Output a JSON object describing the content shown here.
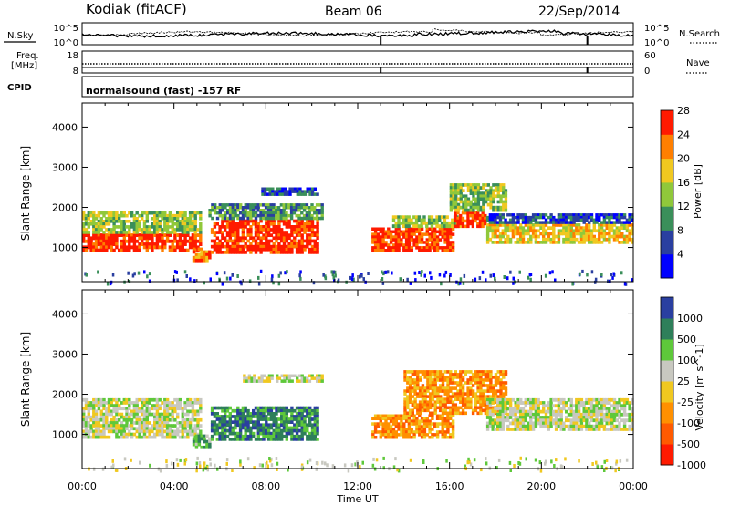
{
  "header": {
    "station": "Kodiak (fitACF)",
    "beam": "Beam 06",
    "date": "22/Sep/2014"
  },
  "panels": {
    "nsky_label": "N.Sky",
    "nsearch_label": "N.Search",
    "noise_ticks_left": [
      "10^5",
      "10^0"
    ],
    "noise_ticks_right": [
      "10^5",
      "10^0"
    ],
    "freq_label_1": "Freq.",
    "freq_label_2": "[MHz]",
    "freq_ticks": [
      "18",
      "8"
    ],
    "nave_label": "Nave",
    "nave_ticks": [
      "60",
      "0"
    ],
    "cpid_label": "CPID",
    "cpid_text": "normalsound (fast) -157 RF"
  },
  "chart_data": [
    {
      "type": "heatmap",
      "title": "",
      "xlabel": "Time UT",
      "ylabel": "Slant Range [km]",
      "xlim": [
        0,
        24
      ],
      "ylim": [
        150,
        4600
      ],
      "x_tick_labels": [
        "00:00",
        "04:00",
        "08:00",
        "12:00",
        "16:00",
        "20:00",
        "00:00"
      ],
      "y_ticks": [
        1000,
        2000,
        3000,
        4000
      ],
      "colorbar": {
        "label": "Power [dB]",
        "ticks": [
          "4",
          "8",
          "12",
          "16",
          "20",
          "24",
          "28"
        ],
        "colors": [
          "#0000ff",
          "#2a3fa0",
          "#3a8f5a",
          "#90c83a",
          "#f0c820",
          "#ff7f00",
          "#ff1a00"
        ]
      },
      "echo_regions": [
        {
          "t0": 0.0,
          "t1": 5.2,
          "r0": 900,
          "r1": 1350,
          "level": 6
        },
        {
          "t0": 0.0,
          "t1": 5.2,
          "r0": 1350,
          "r1": 1900,
          "level": 3
        },
        {
          "t0": 4.8,
          "t1": 5.6,
          "r0": 650,
          "r1": 1000,
          "level": 5
        },
        {
          "t0": 5.6,
          "t1": 10.3,
          "r0": 850,
          "r1": 1700,
          "level": 6
        },
        {
          "t0": 5.5,
          "t1": 10.5,
          "r0": 1700,
          "r1": 2100,
          "level": 2
        },
        {
          "t0": 7.8,
          "t1": 10.3,
          "r0": 2300,
          "r1": 2500,
          "level": 1
        },
        {
          "t0": 12.6,
          "t1": 16.2,
          "r0": 900,
          "r1": 1500,
          "level": 6
        },
        {
          "t0": 13.5,
          "t1": 16.5,
          "r0": 1500,
          "r1": 1800,
          "level": 3
        },
        {
          "t0": 16.2,
          "t1": 17.6,
          "r0": 1500,
          "r1": 1900,
          "level": 6
        },
        {
          "t0": 16.0,
          "t1": 18.5,
          "r0": 1900,
          "r1": 2600,
          "level": 3
        },
        {
          "t0": 17.6,
          "t1": 24.0,
          "r0": 1100,
          "r1": 1600,
          "level": 4
        },
        {
          "t0": 17.6,
          "t1": 24.0,
          "r0": 1600,
          "r1": 1850,
          "level": 1
        }
      ]
    },
    {
      "type": "heatmap",
      "title": "",
      "xlabel": "Time UT",
      "ylabel": "Slant Range [km]",
      "xlim": [
        0,
        24
      ],
      "ylim": [
        150,
        4600
      ],
      "x_tick_labels": [
        "00:00",
        "04:00",
        "08:00",
        "12:00",
        "16:00",
        "20:00",
        "00:00"
      ],
      "y_ticks": [
        1000,
        2000,
        3000,
        4000
      ],
      "colorbar": {
        "label": "Velocity [m s^-1]",
        "ticks": [
          "1000",
          "500",
          "100",
          "25",
          "-25",
          "-100",
          "-500",
          "-1000"
        ],
        "colors": [
          "#2a3fa0",
          "#2e7f5a",
          "#5ec83a",
          "#c8c8c0",
          "#f0c820",
          "#ff9000",
          "#ff5a00",
          "#ff1a00"
        ]
      },
      "echo_regions": [
        {
          "t0": 0.0,
          "t1": 5.2,
          "r0": 900,
          "r1": 1900,
          "level": 3
        },
        {
          "t0": 4.8,
          "t1": 5.6,
          "r0": 650,
          "r1": 1000,
          "level": 2
        },
        {
          "t0": 5.6,
          "t1": 10.3,
          "r0": 850,
          "r1": 1700,
          "level": 1
        },
        {
          "t0": 7.0,
          "t1": 10.5,
          "r0": 2300,
          "r1": 2500,
          "level": 3
        },
        {
          "t0": 12.6,
          "t1": 16.2,
          "r0": 900,
          "r1": 1500,
          "level": 5
        },
        {
          "t0": 14.0,
          "t1": 18.5,
          "r0": 1500,
          "r1": 2600,
          "level": 5
        },
        {
          "t0": 17.6,
          "t1": 24.0,
          "r0": 1100,
          "r1": 1900,
          "level": 3
        }
      ]
    }
  ]
}
